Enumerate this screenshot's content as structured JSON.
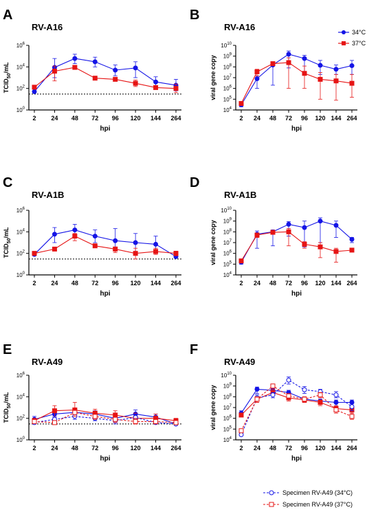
{
  "colors": {
    "series_34": "#1414e6",
    "series_37": "#e61414",
    "axis": "#000000"
  },
  "legend_top": {
    "items": [
      "34°C",
      "37°C"
    ]
  },
  "legend_bottom": {
    "items": [
      "Specimen RV-A49 (34°C)",
      "Specimen RV-A49 (37°C)"
    ]
  },
  "chart_data": [
    {
      "panel": "A",
      "title": "RV-A16",
      "type": "line",
      "ylabel": "TCID50/mL",
      "ylabel_main": "TCID",
      "ylabel_sub": "50",
      "ylabel_tail": "/mL",
      "xlabel": "hpi",
      "categories": [
        "2",
        "24",
        "48",
        "72",
        "96",
        "120",
        "144",
        "264"
      ],
      "y_scale": "log",
      "ylim": [
        1,
        1000000
      ],
      "y_ticks": [
        {
          "v": 1,
          "m": "10",
          "e": "0"
        },
        {
          "v": 100,
          "m": "10",
          "e": "2"
        },
        {
          "v": 10000,
          "m": "10",
          "e": "4"
        },
        {
          "v": 1000000,
          "m": "10",
          "e": "6"
        }
      ],
      "detection_limit": 30,
      "series": [
        {
          "name": "34°C",
          "style": "solid_34",
          "values": [
            50,
            9000,
            60000,
            30000,
            5000,
            8000,
            400,
            200
          ],
          "err_lo": [
            40,
            1000,
            20000,
            10000,
            1500,
            1000,
            150,
            60
          ],
          "err_hi": [
            60,
            60000,
            150000,
            80000,
            15000,
            30000,
            1200,
            700
          ]
        },
        {
          "name": "37°C",
          "style": "solid_37",
          "values": [
            130,
            4000,
            9000,
            900,
            700,
            300,
            120,
            100
          ],
          "err_lo": [
            110,
            500,
            7000,
            800,
            600,
            150,
            100,
            40
          ],
          "err_hi": [
            160,
            12000,
            11000,
            1000,
            800,
            600,
            140,
            250
          ]
        }
      ]
    },
    {
      "panel": "B",
      "title": "RV-A16",
      "type": "line",
      "ylabel": "viral gene copy",
      "xlabel": "hpi",
      "categories": [
        "2",
        "24",
        "48",
        "72",
        "96",
        "120",
        "144",
        "264"
      ],
      "y_scale": "log",
      "ylim": [
        10000,
        10000000000
      ],
      "y_ticks": [
        {
          "v": 10000,
          "m": "10",
          "e": "4"
        },
        {
          "v": 100000,
          "m": "10",
          "e": "5"
        },
        {
          "v": 1000000,
          "m": "10",
          "e": "6"
        },
        {
          "v": 10000000,
          "m": "10",
          "e": "7"
        },
        {
          "v": 100000000,
          "m": "10",
          "e": "8"
        },
        {
          "v": 1000000000,
          "m": "10",
          "e": "9"
        },
        {
          "v": 10000000000,
          "m": "10",
          "e": "10"
        }
      ],
      "legend": true,
      "series": [
        {
          "name": "34°C",
          "style": "solid_34",
          "values": [
            30000,
            8000000,
            150000000,
            1500000000,
            600000000,
            140000000,
            60000000,
            130000000
          ],
          "err_lo": [
            20000,
            1000000,
            2000000,
            80000000,
            20000000,
            20000000,
            20000000,
            20000000
          ],
          "err_hi": [
            40000,
            15000000,
            200000000,
            3000000000,
            1200000000,
            400000000,
            150000000,
            400000000
          ]
        },
        {
          "name": "37°C",
          "style": "solid_37",
          "values": [
            40000,
            35000000,
            200000000,
            250000000,
            25000000,
            7000000,
            5000000,
            3000000
          ],
          "err_lo": [
            30000,
            15000000,
            150000000,
            1000000,
            1000000,
            100000,
            80000,
            150000
          ],
          "err_hi": [
            50000,
            60000000,
            250000000,
            700000000,
            120000000,
            30000000,
            20000000,
            20000000
          ]
        }
      ]
    },
    {
      "panel": "C",
      "title": "RV-A1B",
      "type": "line",
      "ylabel": "TCID50/mL",
      "ylabel_main": "TCID",
      "ylabel_sub": "50",
      "ylabel_tail": "/mL",
      "xlabel": "hpi",
      "categories": [
        "2",
        "24",
        "48",
        "72",
        "96",
        "120",
        "144",
        "264"
      ],
      "y_scale": "log",
      "ylim": [
        1,
        1000000
      ],
      "y_ticks": [
        {
          "v": 1,
          "m": "10",
          "e": "0"
        },
        {
          "v": 100,
          "m": "10",
          "e": "2"
        },
        {
          "v": 10000,
          "m": "10",
          "e": "4"
        },
        {
          "v": 1000000,
          "m": "10",
          "e": "6"
        }
      ],
      "detection_limit": 30,
      "series": [
        {
          "name": "34°C",
          "style": "solid_34",
          "values": [
            80,
            6000,
            15000,
            4000,
            1500,
            1000,
            700,
            50
          ],
          "err_lo": [
            60,
            1000,
            5000,
            1000,
            300,
            150,
            150,
            40
          ],
          "err_hi": [
            100,
            25000,
            50000,
            15000,
            20000,
            7000,
            4000,
            60
          ]
        },
        {
          "name": "37°C",
          "style": "solid_37",
          "values": [
            100,
            250,
            4000,
            500,
            250,
            100,
            150,
            100
          ],
          "err_lo": [
            80,
            180,
            1500,
            450,
            120,
            30,
            80,
            60
          ],
          "err_hi": [
            120,
            350,
            7000,
            600,
            400,
            300,
            300,
            160
          ]
        }
      ]
    },
    {
      "panel": "D",
      "title": "RV-A1B",
      "type": "line",
      "ylabel": "viral gene copy",
      "xlabel": "hpi",
      "categories": [
        "2",
        "24",
        "48",
        "72",
        "96",
        "120",
        "144",
        "264"
      ],
      "y_scale": "log",
      "ylim": [
        10000,
        10000000000
      ],
      "y_ticks": [
        {
          "v": 10000,
          "m": "10",
          "e": "4"
        },
        {
          "v": 100000,
          "m": "10",
          "e": "5"
        },
        {
          "v": 1000000,
          "m": "10",
          "e": "6"
        },
        {
          "v": 10000000,
          "m": "10",
          "e": "7"
        },
        {
          "v": 100000000,
          "m": "10",
          "e": "8"
        },
        {
          "v": 1000000000,
          "m": "10",
          "e": "9"
        },
        {
          "v": 10000000000,
          "m": "10",
          "e": "10"
        }
      ],
      "series": [
        {
          "name": "34°C",
          "style": "solid_34",
          "values": [
            150000,
            60000000,
            100000000,
            500000000,
            250000000,
            1000000000,
            400000000,
            20000000
          ],
          "err_lo": [
            100000,
            3000000,
            5000000,
            40000000,
            4000000,
            10000000,
            30000000,
            10000000
          ],
          "err_hi": [
            250000,
            120000000,
            150000000,
            900000000,
            1000000000,
            2000000000,
            1000000000,
            30000000
          ]
        },
        {
          "name": "37°C",
          "style": "solid_37",
          "values": [
            200000,
            50000000,
            90000000,
            100000000,
            7000000,
            4000000,
            1500000,
            2000000
          ],
          "err_lo": [
            150000,
            30000000,
            60000000,
            5000000,
            3000000,
            400000,
            150000,
            1500000
          ],
          "err_hi": [
            250000,
            70000000,
            120000000,
            200000000,
            12000000,
            10000000,
            3000000,
            2500000
          ]
        }
      ]
    },
    {
      "panel": "E",
      "title": "RV-A49",
      "type": "line",
      "ylabel": "TCID50/mL",
      "ylabel_main": "TCID",
      "ylabel_sub": "50",
      "ylabel_tail": "/mL",
      "xlabel": "hpi",
      "categories": [
        "2",
        "24",
        "48",
        "72",
        "96",
        "120",
        "144",
        "264"
      ],
      "y_scale": "log",
      "ylim": [
        1,
        1000000
      ],
      "y_ticks": [
        {
          "v": 1,
          "m": "10",
          "e": "0"
        },
        {
          "v": 100,
          "m": "10",
          "e": "2"
        },
        {
          "v": 10000,
          "m": "10",
          "e": "4"
        },
        {
          "v": 1000000,
          "m": "10",
          "e": "6"
        }
      ],
      "detection_limit": 30,
      "series": [
        {
          "name": "34°C",
          "style": "solid_34",
          "values": [
            80,
            250,
            350,
            250,
            100,
            250,
            130,
            30
          ],
          "err_lo": [
            40,
            120,
            150,
            120,
            40,
            120,
            70,
            25
          ],
          "err_hi": [
            150,
            500,
            700,
            500,
            250,
            600,
            250,
            40
          ]
        },
        {
          "name": "37°C",
          "style": "solid_37",
          "values": [
            60,
            500,
            600,
            300,
            200,
            100,
            100,
            60
          ],
          "err_lo": [
            40,
            150,
            150,
            100,
            50,
            30,
            30,
            35
          ],
          "err_hi": [
            100,
            1500,
            3000,
            700,
            500,
            300,
            250,
            100
          ]
        },
        {
          "name": "Specimen RV-A49 (34°C)",
          "style": "dashed_34",
          "values": [
            40,
            80,
            150,
            100,
            60,
            120,
            40,
            30
          ],
          "err_lo": [
            30,
            40,
            80,
            60,
            30,
            50,
            30,
            25
          ],
          "err_hi": [
            60,
            150,
            300,
            200,
            100,
            250,
            60,
            40
          ]
        },
        {
          "name": "Specimen RV-A49 (37°C)",
          "style": "dashed_37",
          "values": [
            50,
            40,
            350,
            150,
            80,
            50,
            50,
            40
          ],
          "err_lo": [
            35,
            30,
            150,
            80,
            40,
            30,
            30,
            30
          ],
          "err_hi": [
            80,
            60,
            700,
            300,
            150,
            100,
            100,
            60
          ]
        }
      ]
    },
    {
      "panel": "F",
      "title": "RV-A49",
      "type": "line",
      "ylabel": "viral gene copy",
      "xlabel": "hpi",
      "categories": [
        "2",
        "24",
        "48",
        "72",
        "96",
        "120",
        "144",
        "264"
      ],
      "y_scale": "log",
      "ylim": [
        10000,
        10000000000
      ],
      "y_ticks": [
        {
          "v": 10000,
          "m": "10",
          "e": "4"
        },
        {
          "v": 100000,
          "m": "10",
          "e": "5"
        },
        {
          "v": 1000000,
          "m": "10",
          "e": "6"
        },
        {
          "v": 10000000,
          "m": "10",
          "e": "7"
        },
        {
          "v": 100000000,
          "m": "10",
          "e": "8"
        },
        {
          "v": 1000000000,
          "m": "10",
          "e": "9"
        },
        {
          "v": 10000000000,
          "m": "10",
          "e": "10"
        }
      ],
      "series": [
        {
          "name": "34°C",
          "style": "solid_34",
          "values": [
            3000000,
            500000000,
            400000000,
            250000000,
            60000000,
            40000000,
            30000000,
            30000000
          ],
          "err_lo": [
            2000000,
            200000000,
            200000000,
            100000000,
            30000000,
            20000000,
            15000000,
            15000000
          ],
          "err_hi": [
            5000000,
            800000000,
            600000000,
            400000000,
            100000000,
            60000000,
            50000000,
            50000000
          ]
        },
        {
          "name": "37°C",
          "style": "solid_37",
          "values": [
            2000000,
            60000000,
            250000000,
            80000000,
            50000000,
            30000000,
            8000000,
            6000000
          ],
          "err_lo": [
            1500000,
            30000000,
            150000000,
            40000000,
            30000000,
            15000000,
            4000000,
            3000000
          ],
          "err_hi": [
            3000000,
            100000000,
            400000000,
            150000000,
            80000000,
            50000000,
            15000000,
            10000000
          ]
        },
        {
          "name": "Specimen RV-A49 (34°C)",
          "style": "dashed_34",
          "values": [
            30000,
            80000000,
            150000000,
            3500000000,
            450000000,
            300000000,
            150000000,
            12000000
          ],
          "err_lo": [
            25000,
            40000000,
            80000000,
            1500000000,
            200000000,
            150000000,
            80000000,
            5000000
          ],
          "err_hi": [
            40000,
            150000000,
            250000000,
            7000000000,
            900000000,
            500000000,
            300000000,
            25000000
          ]
        },
        {
          "name": "Specimen RV-A49 (37°C)",
          "style": "dashed_37",
          "values": [
            70000,
            60000000,
            1000000000,
            120000000,
            60000000,
            150000000,
            6000000,
            1500000
          ],
          "err_lo": [
            50000,
            30000000,
            500000000,
            60000000,
            30000000,
            80000000,
            3000000,
            800000
          ],
          "err_hi": [
            100000,
            100000000,
            1500000000,
            200000000,
            100000000,
            250000000,
            12000000,
            3000000
          ]
        }
      ]
    }
  ]
}
